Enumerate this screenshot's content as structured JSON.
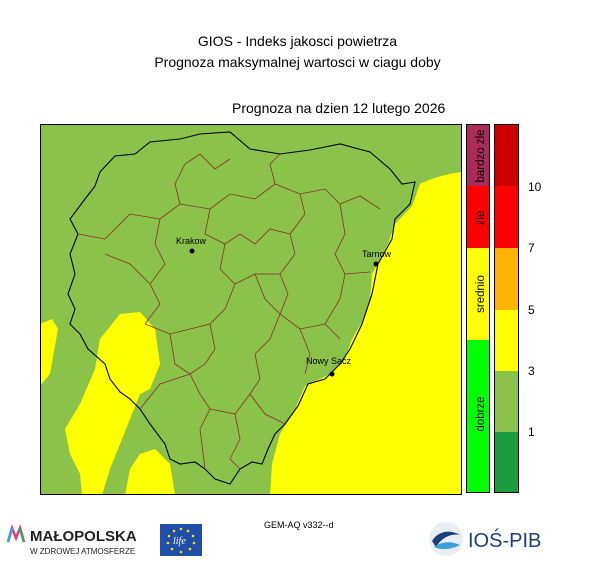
{
  "header": {
    "title": "GIOS - Indeks jakosci powietrza",
    "subtitle": "Prognoza maksymalnej wartosci w ciagu doby",
    "forecast_date": "Prognoza na dzien  12 lutego 2026"
  },
  "cities": [
    {
      "name": "Krakow"
    },
    {
      "name": "Tarnow"
    },
    {
      "name": "Nowy Sacz"
    }
  ],
  "legend": {
    "categories": [
      {
        "label": "bardzo zle",
        "color": "#aa2b5a"
      },
      {
        "label": "zle",
        "color": "#ff0000"
      },
      {
        "label": "srednio",
        "color": "#ffff00"
      },
      {
        "label": "dobrze",
        "color": "#00ff00"
      }
    ],
    "index_scale": [
      {
        "level": "10",
        "color": "#cc0000"
      },
      {
        "level": "7",
        "color": "#ff0000"
      },
      {
        "level": "5",
        "color": "#ffb300"
      },
      {
        "level": "3",
        "color": "#ffff00"
      },
      {
        "level": "1",
        "color": "#8bc34a"
      },
      {
        "level": "",
        "color": "#1a9e3f"
      }
    ]
  },
  "map_colors": {
    "good": "#8bc34a",
    "moderate": "#ffff00"
  },
  "footer": {
    "model_version": "GEM-AQ v332--d",
    "logo_left_name": "MAŁOPOLSKA",
    "logo_left_tagline": "W ZDROWEJ ATMOSFERZE",
    "logo_eu": "life",
    "logo_right": "IOŚ-PIB"
  }
}
